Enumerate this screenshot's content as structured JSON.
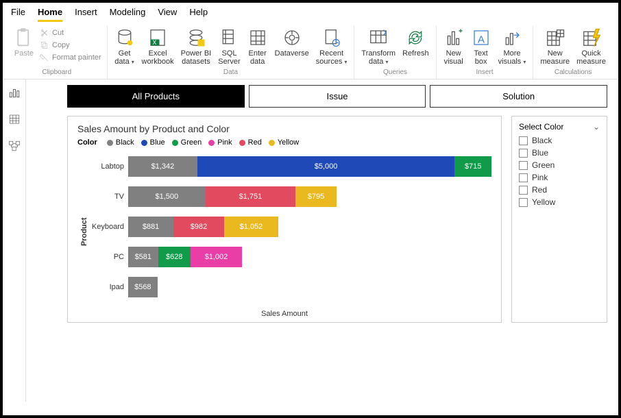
{
  "menubar": [
    "File",
    "Home",
    "Insert",
    "Modeling",
    "View",
    "Help"
  ],
  "menubar_active": "Home",
  "ribbon": {
    "clipboard": {
      "paste": "Paste",
      "cut": "Cut",
      "copy": "Copy",
      "format": "Format painter",
      "label": "Clipboard"
    },
    "data": {
      "items": [
        {
          "l1": "Get",
          "l2": "data",
          "caret": true
        },
        {
          "l1": "Excel",
          "l2": "workbook"
        },
        {
          "l1": "Power BI",
          "l2": "datasets"
        },
        {
          "l1": "SQL",
          "l2": "Server"
        },
        {
          "l1": "Enter",
          "l2": "data"
        },
        {
          "l1": "Dataverse",
          "l2": ""
        },
        {
          "l1": "Recent",
          "l2": "sources",
          "caret": true
        }
      ],
      "label": "Data"
    },
    "queries": {
      "items": [
        {
          "l1": "Transform",
          "l2": "data",
          "caret": true
        },
        {
          "l1": "Refresh",
          "l2": ""
        }
      ],
      "label": "Queries"
    },
    "insert": {
      "items": [
        {
          "l1": "New",
          "l2": "visual"
        },
        {
          "l1": "Text",
          "l2": "box"
        },
        {
          "l1": "More",
          "l2": "visuals",
          "caret": true
        }
      ],
      "label": "Insert"
    },
    "calc": {
      "items": [
        {
          "l1": "New",
          "l2": "measure"
        },
        {
          "l1": "Quick",
          "l2": "measure"
        }
      ],
      "label": "Calculations"
    }
  },
  "navtabs": [
    {
      "label": "All Products",
      "active": true
    },
    {
      "label": "Issue",
      "active": false
    },
    {
      "label": "Solution",
      "active": false
    }
  ],
  "chart": {
    "title": "Sales Amount by Product and Color",
    "legend_title": "Color",
    "colors": {
      "Black": "#808080",
      "Blue": "#1f49b6",
      "Green": "#0f9b4a",
      "Pink": "#e83ea6",
      "Red": "#e14a5f",
      "Yellow": "#eab920"
    },
    "legend_order": [
      "Black",
      "Blue",
      "Green",
      "Pink",
      "Red",
      "Yellow"
    ],
    "y_axis_label": "Product",
    "x_axis_label": "Sales Amount",
    "max_value": 7057,
    "rows": [
      {
        "cat": "Labtop",
        "segs": [
          {
            "c": "Black",
            "v": 1342,
            "t": "$1,342"
          },
          {
            "c": "Blue",
            "v": 5000,
            "t": "$5,000"
          },
          {
            "c": "Green",
            "v": 715,
            "t": "$715"
          }
        ]
      },
      {
        "cat": "TV",
        "segs": [
          {
            "c": "Black",
            "v": 1500,
            "t": "$1,500"
          },
          {
            "c": "Red",
            "v": 1751,
            "t": "$1,751"
          },
          {
            "c": "Yellow",
            "v": 795,
            "t": "$795"
          }
        ]
      },
      {
        "cat": "Keyboard",
        "segs": [
          {
            "c": "Black",
            "v": 881,
            "t": "$881"
          },
          {
            "c": "Red",
            "v": 982,
            "t": "$982"
          },
          {
            "c": "Yellow",
            "v": 1052,
            "t": "$1,052"
          }
        ]
      },
      {
        "cat": "PC",
        "segs": [
          {
            "c": "Black",
            "v": 581,
            "t": "$581"
          },
          {
            "c": "Green",
            "v": 628,
            "t": "$628"
          },
          {
            "c": "Pink",
            "v": 1002,
            "t": "$1,002"
          }
        ]
      },
      {
        "cat": "Ipad",
        "segs": [
          {
            "c": "Black",
            "v": 568,
            "t": "$568"
          }
        ]
      }
    ]
  },
  "slicer": {
    "title": "Select Color",
    "options": [
      "Black",
      "Blue",
      "Green",
      "Pink",
      "Red",
      "Yellow"
    ]
  }
}
